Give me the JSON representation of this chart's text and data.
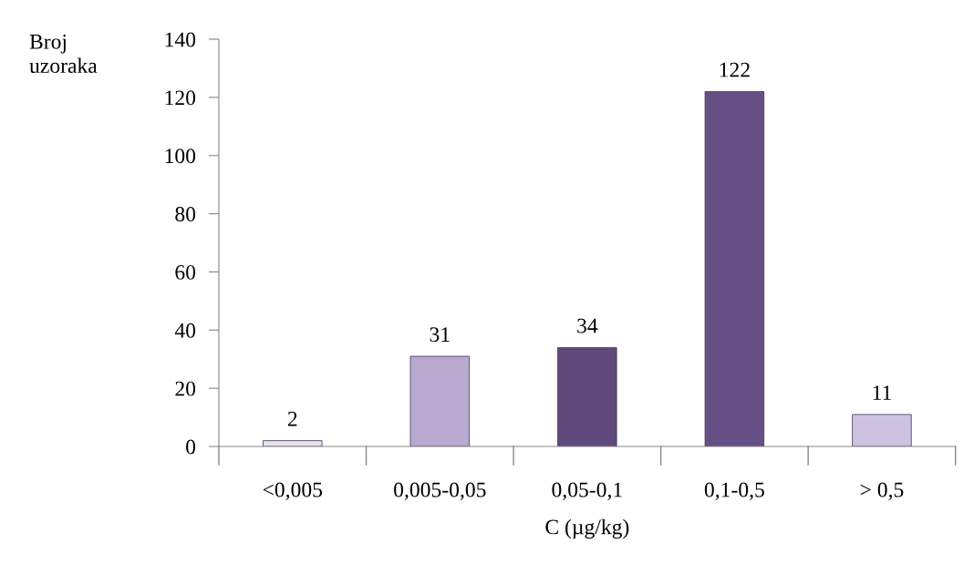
{
  "chart_data": {
    "type": "bar",
    "xlabel": "C (µg/kg)",
    "ylabel": "Broj\nuzoraka",
    "categories": [
      "<0,005",
      "0,005-0,05",
      "0,05-0,1",
      "0,1-0,5",
      "> 0,5"
    ],
    "values": [
      2,
      31,
      34,
      122,
      11
    ],
    "colors": [
      "#e6e2ee",
      "#b9a9d1",
      "#604a7b",
      "#654f84",
      "#cdc3e0"
    ],
    "ylim": [
      0,
      140
    ],
    "yticks": [
      0,
      20,
      40,
      60,
      80,
      100,
      120,
      140
    ],
    "data_labels": true,
    "grid": false,
    "legend": false
  }
}
